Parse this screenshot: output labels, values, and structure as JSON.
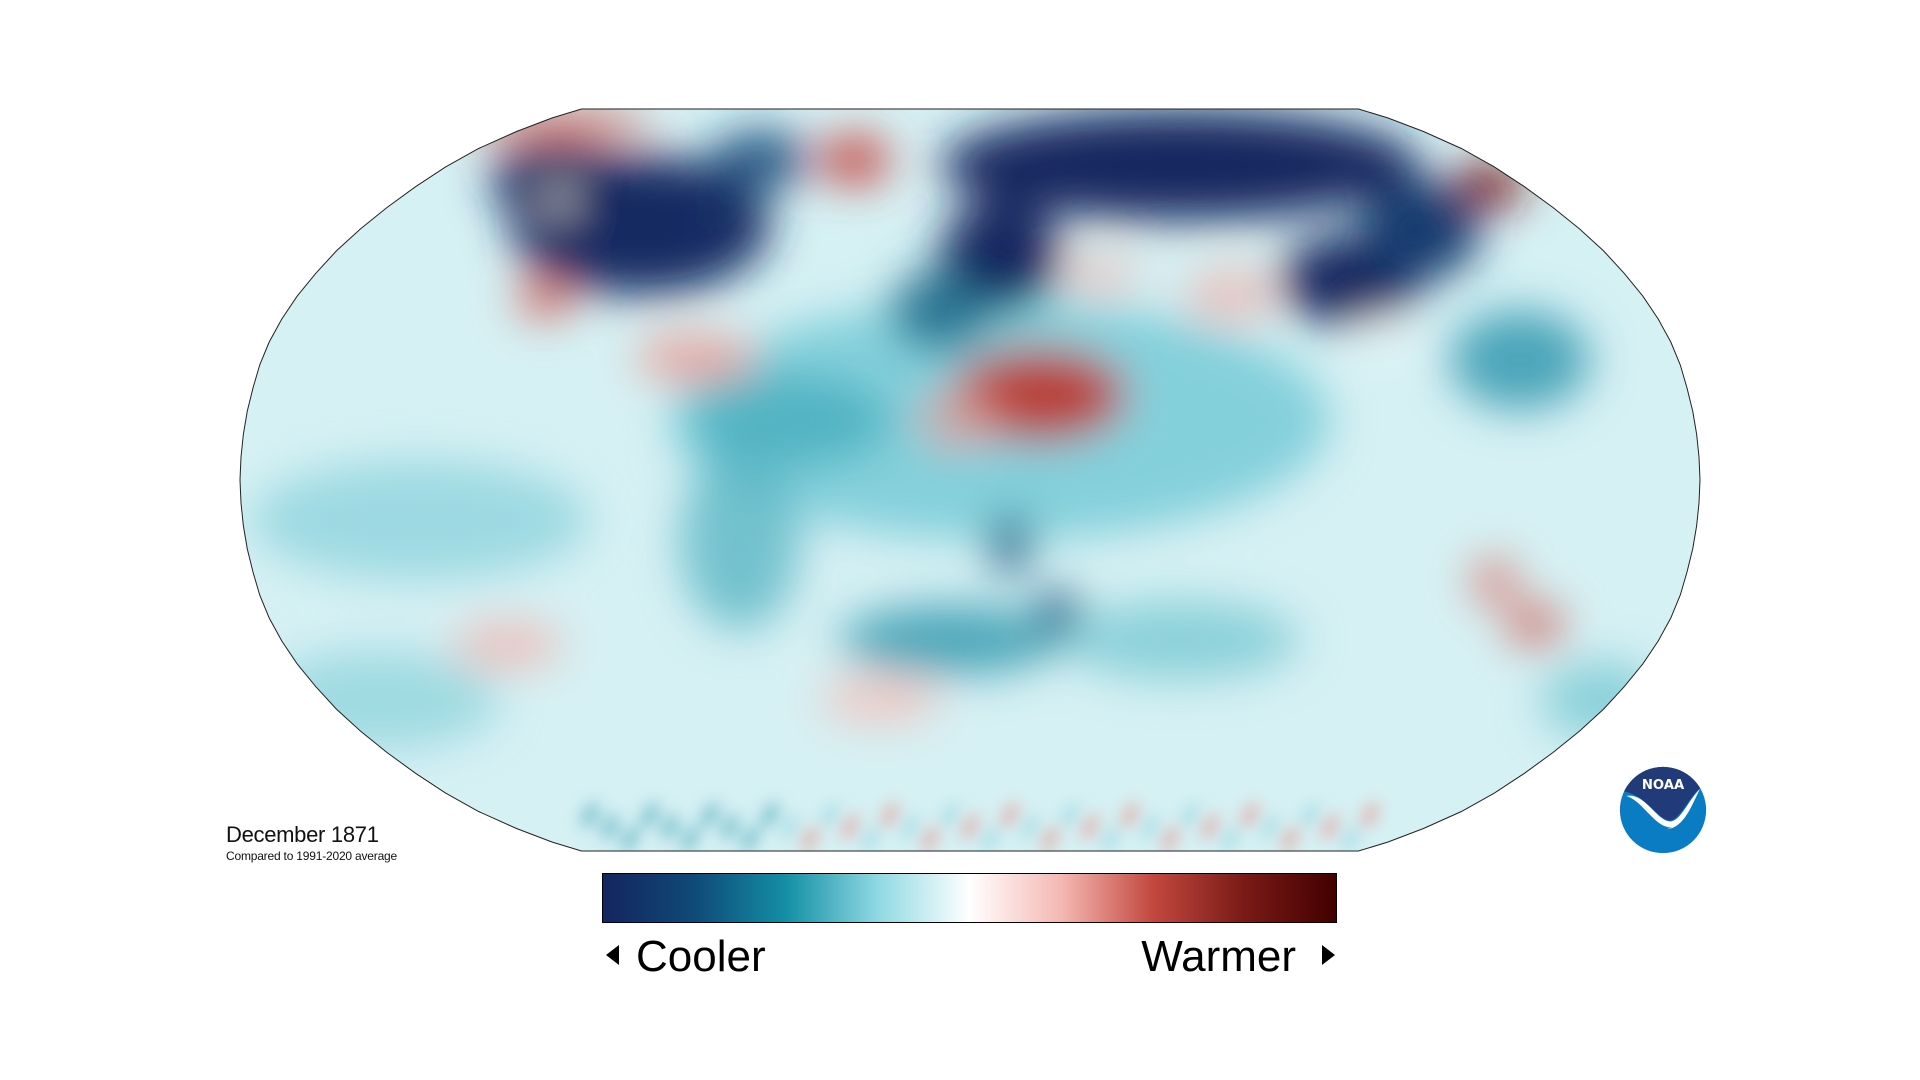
{
  "map": {
    "title": "December 1871",
    "subtitle": "Compared to 1991-2020 average",
    "projection": "Robinson",
    "background_anomaly_color": "#d6f1f4"
  },
  "legend": {
    "cooler_label": "Cooler",
    "warmer_label": "Warmer",
    "colors": [
      "#14255e",
      "#0f4a78",
      "#148fa5",
      "#8fd9e3",
      "#ffffff",
      "#f5b8b3",
      "#c2483f",
      "#7a1a16",
      "#420000"
    ]
  },
  "logo": {
    "text": "NOAA",
    "colors": {
      "top": "#213a7a",
      "bottom": "#0a7cc4"
    }
  }
}
